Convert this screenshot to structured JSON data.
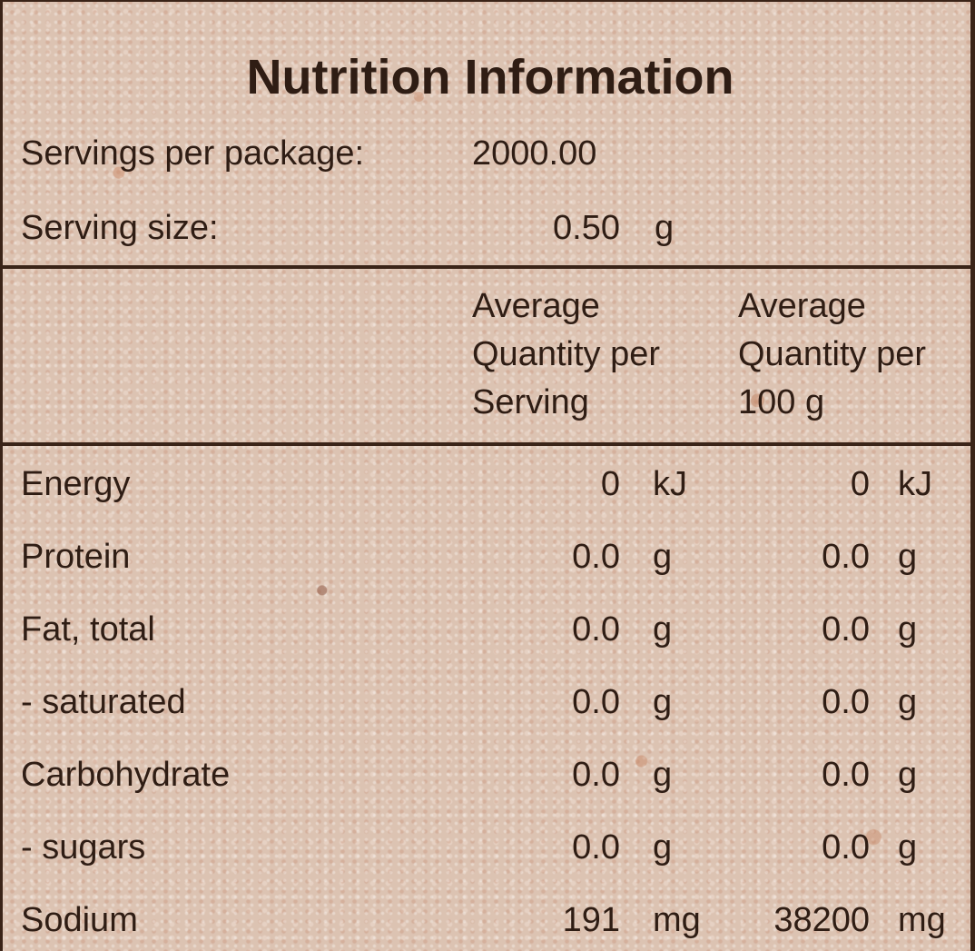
{
  "title": "Nutrition Information",
  "servings_per_package": {
    "label": "Servings per package:",
    "value": "2000.00"
  },
  "serving_size": {
    "label": "Serving size:",
    "value": "0.50",
    "unit": "g"
  },
  "column_headers": [
    [
      "Average",
      "Quantity per",
      "Serving"
    ],
    [
      "Average",
      "Quantity per",
      "100 g"
    ]
  ],
  "rows": [
    {
      "name": "Energy",
      "per_serving": "0",
      "per_serving_unit": "kJ",
      "per_100g": "0",
      "per_100g_unit": "kJ"
    },
    {
      "name": "Protein",
      "per_serving": "0.0",
      "per_serving_unit": "g",
      "per_100g": "0.0",
      "per_100g_unit": "g"
    },
    {
      "name": "Fat, total",
      "per_serving": "0.0",
      "per_serving_unit": "g",
      "per_100g": "0.0",
      "per_100g_unit": "g"
    },
    {
      "name": "- saturated",
      "per_serving": "0.0",
      "per_serving_unit": "g",
      "per_100g": "0.0",
      "per_100g_unit": "g"
    },
    {
      "name": "Carbohydrate",
      "per_serving": "0.0",
      "per_serving_unit": "g",
      "per_100g": "0.0",
      "per_100g_unit": "g"
    },
    {
      "name": "- sugars",
      "per_serving": "0.0",
      "per_serving_unit": "g",
      "per_100g": "0.0",
      "per_100g_unit": "g"
    },
    {
      "name": "Sodium",
      "per_serving": "191",
      "per_serving_unit": "mg",
      "per_100g": "38200",
      "per_100g_unit": "mg"
    }
  ]
}
